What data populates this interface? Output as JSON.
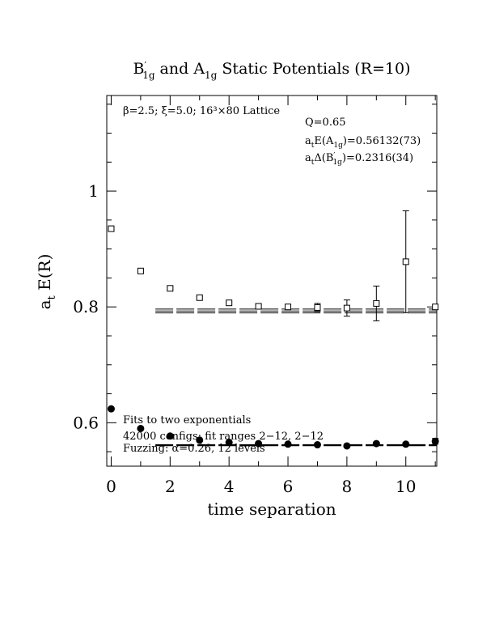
{
  "chart_data": {
    "type": "scatter",
    "title_parts": {
      "main": "B",
      "prime": "′",
      "sub1": "1g",
      "mid": " and A",
      "sub2": "1g",
      "tail": " Static Potentials (R=10)"
    },
    "xlabel": "time separation",
    "ylabel": "a",
    "ylabel_sub": "t",
    "ylabel_tail": " E(R)",
    "xlim": [
      -0.15,
      11.05
    ],
    "ylim": [
      0.525,
      1.165
    ],
    "x_ticks": [
      0,
      2,
      4,
      6,
      8,
      10
    ],
    "x_tick_labels": [
      "0",
      "2",
      "4",
      "6",
      "8",
      "10"
    ],
    "y_ticks": [
      0.6,
      0.8,
      1.0
    ],
    "y_tick_labels": [
      "0.6",
      "0.8",
      "1"
    ],
    "annotation_top": "β=2.5;  ξ=5.0;  16³×80 Lattice",
    "q_text": "Q=0.65",
    "a1g_energy": {
      "pre": "a",
      "sub_t": "t",
      "mid": "E(A",
      "sub": "1g",
      "tail": ")=0.56132(73)"
    },
    "b1g_gap": {
      "pre": "a",
      "sub_t": "t",
      "mid": "Δ(B",
      "prime": "′",
      "sub": "1g",
      "tail": ")=0.2316(34)"
    },
    "annotation_bottom": [
      "Fits to two exponentials",
      "42000 configs; fit ranges 2−12, 2−12",
      "Fuzzing: α=0.26, 12 levels"
    ],
    "series": [
      {
        "name": "B′1g",
        "marker": "open-square",
        "x": [
          0,
          1,
          2,
          3,
          4,
          5,
          6,
          7,
          8,
          9,
          10,
          11
        ],
        "y": [
          0.935,
          0.862,
          0.832,
          0.816,
          0.807,
          0.801,
          0.8,
          0.799,
          0.798,
          0.806,
          0.878,
          0.8
        ],
        "err": [
          0.002,
          0.002,
          0.002,
          0.002,
          0.002,
          0.003,
          0.004,
          0.007,
          0.014,
          0.03,
          0.088,
          0.0
        ]
      },
      {
        "name": "A1g",
        "marker": "filled-circle",
        "x": [
          0,
          1,
          2,
          3,
          4,
          5,
          6,
          7,
          8,
          9,
          10,
          11
        ],
        "y": [
          0.624,
          0.59,
          0.577,
          0.57,
          0.566,
          0.564,
          0.563,
          0.562,
          0.56,
          0.564,
          0.563,
          0.568
        ],
        "err": [
          0.001,
          0.001,
          0.001,
          0.001,
          0.001,
          0.001,
          0.001,
          0.001,
          0.002,
          0.002,
          0.002,
          0.005
        ]
      }
    ],
    "fits": [
      {
        "series": "A1g",
        "x_range": [
          1.5,
          11.05
        ],
        "lines": [
          0.5613
        ]
      },
      {
        "series": "B′1g",
        "x_range": [
          1.5,
          11.05
        ],
        "lines": [
          0.7896,
          0.7929,
          0.7963
        ]
      }
    ]
  }
}
